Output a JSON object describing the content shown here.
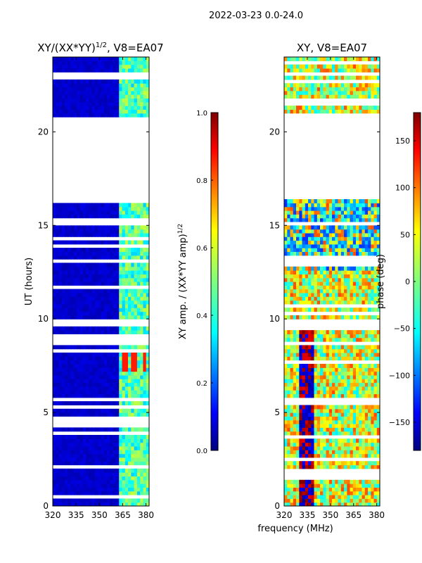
{
  "suptitle": "2022-03-23 0.0-24.0",
  "shared_xlabel": "frequency (MHz)",
  "chart_data": [
    {
      "type": "heatmap",
      "title_prefix": "XY/(XX*YY)",
      "title_exponent": "1/2",
      "title_suffix": ", V8=EA07",
      "ylabel": "UT (hours)",
      "xlim": [
        320,
        382
      ],
      "xticks": [
        320,
        335,
        350,
        365,
        380
      ],
      "ylim": [
        0,
        24
      ],
      "yticks": [
        0,
        5,
        10,
        15,
        20
      ],
      "colorbar": {
        "label_main": "XY amp. / (XX*YY amp)",
        "label_exponent": "1/2",
        "range": [
          0.0,
          1.0
        ],
        "ticks": [
          "0.0",
          "0.2",
          "0.4",
          "0.6",
          "0.8",
          "1.0"
        ],
        "colormap": "jet"
      },
      "data_time_ranges_hours": [
        [
          0,
          5.6
        ],
        [
          5.8,
          9.6
        ],
        [
          9.8,
          16.3
        ],
        [
          20.9,
          24
        ]
      ],
      "typical_value": 0.05,
      "high_band_mhz": [
        362,
        382
      ],
      "high_band_value": 0.45,
      "peak_value": 0.85
    },
    {
      "type": "heatmap",
      "title": "XY, V8=EA07",
      "xlim": [
        320,
        382
      ],
      "xticks": [
        320,
        335,
        350,
        365,
        380
      ],
      "ylim": [
        0,
        24
      ],
      "yticks": [
        0,
        5,
        10,
        15,
        20
      ],
      "colorbar": {
        "label": "phase (deg)",
        "range": [
          -180,
          180
        ],
        "ticks": [
          "150",
          "100",
          "50",
          "0",
          "−50",
          "−100",
          "−150"
        ],
        "tick_values": [
          150,
          100,
          50,
          0,
          -50,
          -100,
          -150
        ],
        "colormap": "jet"
      },
      "data_time_ranges_hours": [
        [
          0,
          5.6
        ],
        [
          5.8,
          9.6
        ],
        [
          9.8,
          16.3
        ],
        [
          20.9,
          24
        ]
      ],
      "typical_phase_deg": 30
    }
  ]
}
